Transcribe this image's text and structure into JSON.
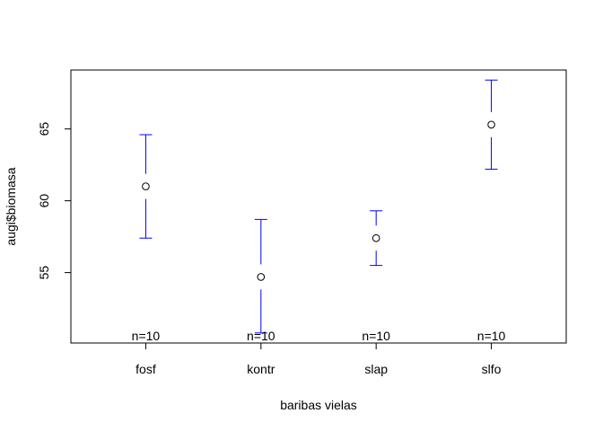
{
  "chart_data": {
    "type": "scatter",
    "title": "",
    "xlabel": "baribas vielas",
    "ylabel": "augi$biomasa",
    "categories": [
      "fosf",
      "kontr",
      "slap",
      "slfo"
    ],
    "means": [
      61.0,
      54.7,
      57.4,
      65.3
    ],
    "ci_upper": [
      64.6,
      58.7,
      59.3,
      68.4
    ],
    "ci_lower": [
      57.4,
      50.8,
      55.5,
      62.2
    ],
    "counts": [
      "n=10",
      "n=10",
      "n=10",
      "n=10"
    ],
    "yticks": [
      55,
      60,
      65
    ],
    "ylim": [
      50.1,
      69.1
    ],
    "errorbar_color": "#0000ff",
    "point_color": "#000000",
    "grid": false,
    "legend": "none"
  }
}
